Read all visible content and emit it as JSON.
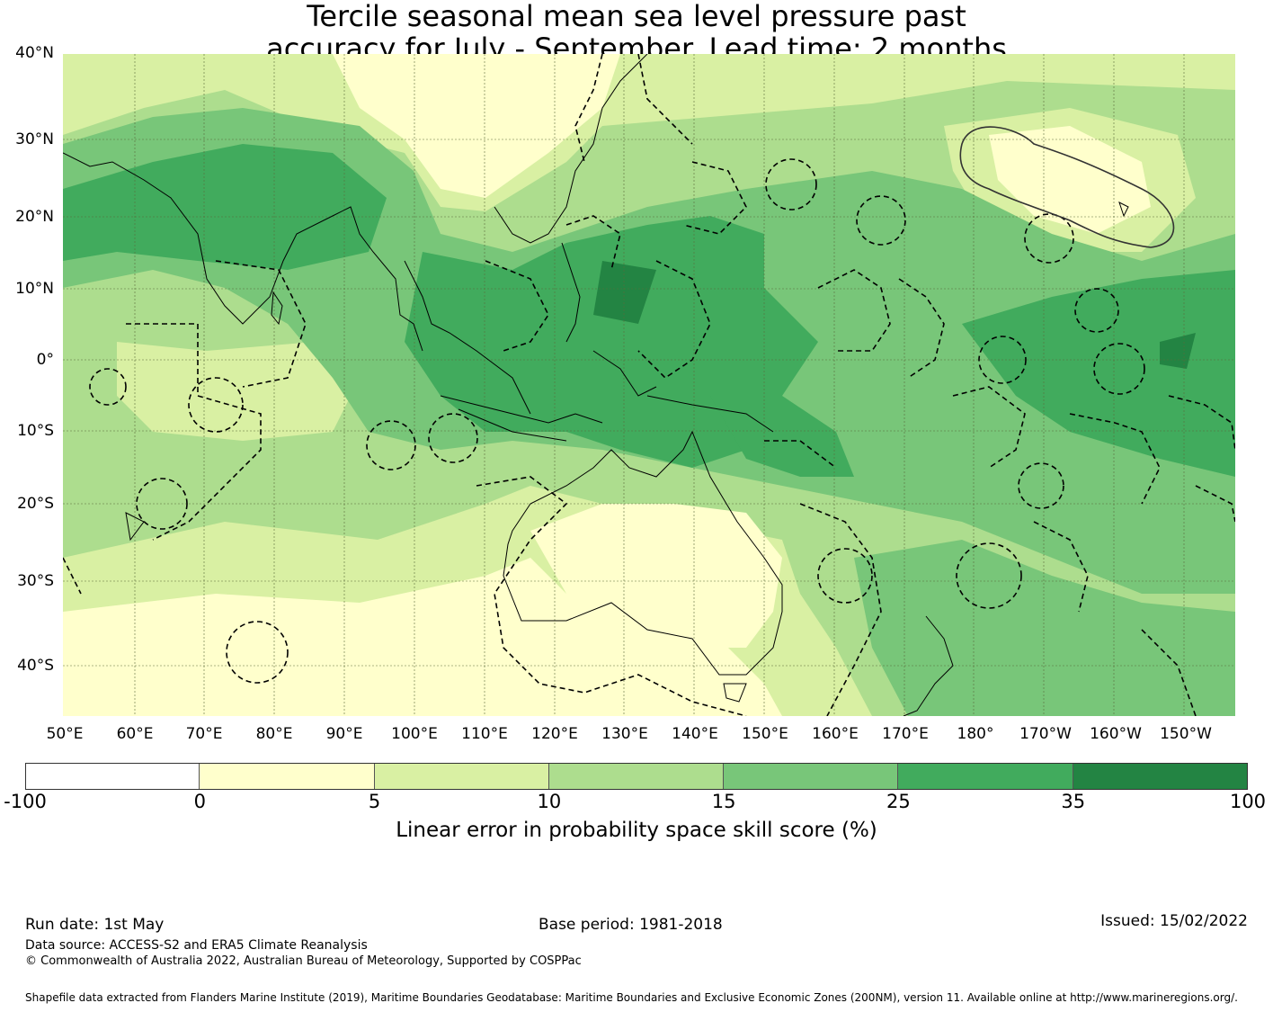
{
  "title": {
    "line1": "Tercile seasonal mean sea level pressure past",
    "line2": "accuracy for July - September. Lead time: 2 months"
  },
  "map": {
    "lat_labels": [
      "40°N",
      "30°N",
      "20°N",
      "10°N",
      "0°",
      "10°S",
      "20°S",
      "30°S",
      "40°S"
    ],
    "lon_labels": [
      "50°E",
      "60°E",
      "70°E",
      "80°E",
      "90°E",
      "100°E",
      "110°E",
      "120°E",
      "130°E",
      "140°E",
      "150°E",
      "160°E",
      "170°E",
      "180°",
      "170°W",
      "160°W",
      "150°W"
    ],
    "ocean_color": "#d9f0a3",
    "land_outline_color": "#000000",
    "eez_boundary_style": "dashed"
  },
  "legend": {
    "ticks": [
      "-100",
      "0",
      "5",
      "10",
      "15",
      "25",
      "35",
      "100"
    ],
    "colors": [
      "#ffffff",
      "#ffffcc",
      "#d9f0a3",
      "#addd8e",
      "#78c679",
      "#41ab5d",
      "#238443"
    ],
    "label": "Linear error in probability space skill score (%)"
  },
  "footer": {
    "run_date": "Run date: 1st May",
    "base_period": "Base period: 1981-2018",
    "issued": "Issued: 15/02/2022",
    "data_source": "Data source: ACCESS-S2 and ERA5 Climate Reanalysis",
    "copyright": "© Commonwealth of Australia 2022, Australian Bureau of Meteorology, Supported by COSPPac",
    "shapefile": "Shapefile data extracted from Flanders Marine Institute (2019), Maritime Boundaries Geodatabase: Maritime Boundaries and Exclusive Economic Zones (200NM), version 11. Available online at http://www.marineregions.org/."
  }
}
